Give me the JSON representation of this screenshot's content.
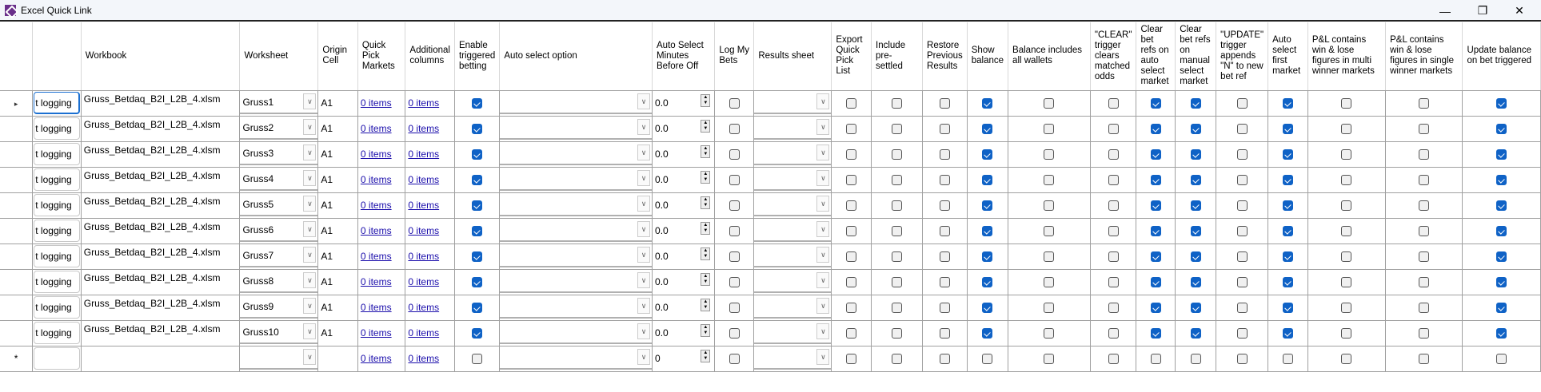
{
  "window": {
    "title": "Excel Quick Link",
    "minimize_icon": "minimize-icon",
    "restore_icon": "restore-icon",
    "close_icon": "close-icon"
  },
  "columns": [
    "",
    "Workbook",
    "Worksheet",
    "Origin Cell",
    "Quick Pick Markets",
    "Additional columns",
    "Enable triggered betting",
    "Auto select option",
    "Auto Select Minutes Before Off",
    "Log My Bets",
    "Results sheet",
    "Export Quick Pick List",
    "Include pre-settled",
    "Restore Previous Results",
    "Show balance",
    "Balance includes all wallets",
    "\"CLEAR\" trigger clears matched odds",
    "Clear bet refs on auto select market",
    "Clear bet refs on manual select market",
    "\"UPDATE\" trigger appends \"N\" to new bet ref",
    "Auto select first market",
    "P&L contains win & lose figures in multi winner markets",
    "P&L contains win & lose figures in single winner markets",
    "Update balance on bet triggered"
  ],
  "rows": [
    {
      "first": "t logging",
      "workbook": "Gruss_Betdaq_B2I_L2B_4.xlsm",
      "worksheet": "Gruss1",
      "origin": "A1",
      "quick_pick": "0 items",
      "additional": "0 items",
      "enable": true,
      "auto_option": "",
      "minutes": "0.0",
      "log": false,
      "results": "",
      "export": false,
      "include": false,
      "restore": false,
      "show_balance": true,
      "balance_all": false,
      "clear": false,
      "clear_auto": true,
      "clear_manual": true,
      "update": false,
      "auto_first": true,
      "pl_multi": false,
      "pl_single": false,
      "update_balance": true
    },
    {
      "first": "t logging",
      "workbook": "Gruss_Betdaq_B2I_L2B_4.xlsm",
      "worksheet": "Gruss2",
      "origin": "A1",
      "quick_pick": "0 items",
      "additional": "0 items",
      "enable": true,
      "auto_option": "",
      "minutes": "0.0",
      "log": false,
      "results": "",
      "export": false,
      "include": false,
      "restore": false,
      "show_balance": true,
      "balance_all": false,
      "clear": false,
      "clear_auto": true,
      "clear_manual": true,
      "update": false,
      "auto_first": true,
      "pl_multi": false,
      "pl_single": false,
      "update_balance": true
    },
    {
      "first": "t logging",
      "workbook": "Gruss_Betdaq_B2I_L2B_4.xlsm",
      "worksheet": "Gruss3",
      "origin": "A1",
      "quick_pick": "0 items",
      "additional": "0 items",
      "enable": true,
      "auto_option": "",
      "minutes": "0.0",
      "log": false,
      "results": "",
      "export": false,
      "include": false,
      "restore": false,
      "show_balance": true,
      "balance_all": false,
      "clear": false,
      "clear_auto": true,
      "clear_manual": true,
      "update": false,
      "auto_first": true,
      "pl_multi": false,
      "pl_single": false,
      "update_balance": true
    },
    {
      "first": "t logging",
      "workbook": "Gruss_Betdaq_B2I_L2B_4.xlsm",
      "worksheet": "Gruss4",
      "origin": "A1",
      "quick_pick": "0 items",
      "additional": "0 items",
      "enable": true,
      "auto_option": "",
      "minutes": "0.0",
      "log": false,
      "results": "",
      "export": false,
      "include": false,
      "restore": false,
      "show_balance": true,
      "balance_all": false,
      "clear": false,
      "clear_auto": true,
      "clear_manual": true,
      "update": false,
      "auto_first": true,
      "pl_multi": false,
      "pl_single": false,
      "update_balance": true
    },
    {
      "first": "t logging",
      "workbook": "Gruss_Betdaq_B2I_L2B_4.xlsm",
      "worksheet": "Gruss5",
      "origin": "A1",
      "quick_pick": "0 items",
      "additional": "0 items",
      "enable": true,
      "auto_option": "",
      "minutes": "0.0",
      "log": false,
      "results": "",
      "export": false,
      "include": false,
      "restore": false,
      "show_balance": true,
      "balance_all": false,
      "clear": false,
      "clear_auto": true,
      "clear_manual": true,
      "update": false,
      "auto_first": true,
      "pl_multi": false,
      "pl_single": false,
      "update_balance": true
    },
    {
      "first": "t logging",
      "workbook": "Gruss_Betdaq_B2I_L2B_4.xlsm",
      "worksheet": "Gruss6",
      "origin": "A1",
      "quick_pick": "0 items",
      "additional": "0 items",
      "enable": true,
      "auto_option": "",
      "minutes": "0.0",
      "log": false,
      "results": "",
      "export": false,
      "include": false,
      "restore": false,
      "show_balance": true,
      "balance_all": false,
      "clear": false,
      "clear_auto": true,
      "clear_manual": true,
      "update": false,
      "auto_first": true,
      "pl_multi": false,
      "pl_single": false,
      "update_balance": true
    },
    {
      "first": "t logging",
      "workbook": "Gruss_Betdaq_B2I_L2B_4.xlsm",
      "worksheet": "Gruss7",
      "origin": "A1",
      "quick_pick": "0 items",
      "additional": "0 items",
      "enable": true,
      "auto_option": "",
      "minutes": "0.0",
      "log": false,
      "results": "",
      "export": false,
      "include": false,
      "restore": false,
      "show_balance": true,
      "balance_all": false,
      "clear": false,
      "clear_auto": true,
      "clear_manual": true,
      "update": false,
      "auto_first": true,
      "pl_multi": false,
      "pl_single": false,
      "update_balance": true
    },
    {
      "first": "t logging",
      "workbook": "Gruss_Betdaq_B2I_L2B_4.xlsm",
      "worksheet": "Gruss8",
      "origin": "A1",
      "quick_pick": "0 items",
      "additional": "0 items",
      "enable": true,
      "auto_option": "",
      "minutes": "0.0",
      "log": false,
      "results": "",
      "export": false,
      "include": false,
      "restore": false,
      "show_balance": true,
      "balance_all": false,
      "clear": false,
      "clear_auto": true,
      "clear_manual": true,
      "update": false,
      "auto_first": true,
      "pl_multi": false,
      "pl_single": false,
      "update_balance": true
    },
    {
      "first": "t logging",
      "workbook": "Gruss_Betdaq_B2I_L2B_4.xlsm",
      "worksheet": "Gruss9",
      "origin": "A1",
      "quick_pick": "0 items",
      "additional": "0 items",
      "enable": true,
      "auto_option": "",
      "minutes": "0.0",
      "log": false,
      "results": "",
      "export": false,
      "include": false,
      "restore": false,
      "show_balance": true,
      "balance_all": false,
      "clear": false,
      "clear_auto": true,
      "clear_manual": true,
      "update": false,
      "auto_first": true,
      "pl_multi": false,
      "pl_single": false,
      "update_balance": true
    },
    {
      "first": "t logging",
      "workbook": "Gruss_Betdaq_B2I_L2B_4.xlsm",
      "worksheet": "Gruss10",
      "origin": "A1",
      "quick_pick": "0 items",
      "additional": "0 items",
      "enable": true,
      "auto_option": "",
      "minutes": "0.0",
      "log": false,
      "results": "",
      "export": false,
      "include": false,
      "restore": false,
      "show_balance": true,
      "balance_all": false,
      "clear": false,
      "clear_auto": true,
      "clear_manual": true,
      "update": false,
      "auto_first": true,
      "pl_multi": false,
      "pl_single": false,
      "update_balance": true
    },
    {
      "first": "",
      "workbook": "",
      "worksheet": "",
      "origin": "",
      "quick_pick": "0 items",
      "additional": "0 items",
      "enable": false,
      "auto_option": "",
      "minutes": "0",
      "log": false,
      "results": "",
      "export": false,
      "include": false,
      "restore": false,
      "show_balance": false,
      "balance_all": false,
      "clear": false,
      "clear_auto": false,
      "clear_manual": false,
      "update": false,
      "auto_first": false,
      "pl_multi": false,
      "pl_single": false,
      "update_balance": false,
      "new_row": true
    }
  ],
  "row_markers": {
    "current": "▸",
    "new": "*"
  },
  "colors": {
    "checked": "#0f62c6",
    "link": "#1a0dab",
    "focus": "#1a6fd1"
  }
}
